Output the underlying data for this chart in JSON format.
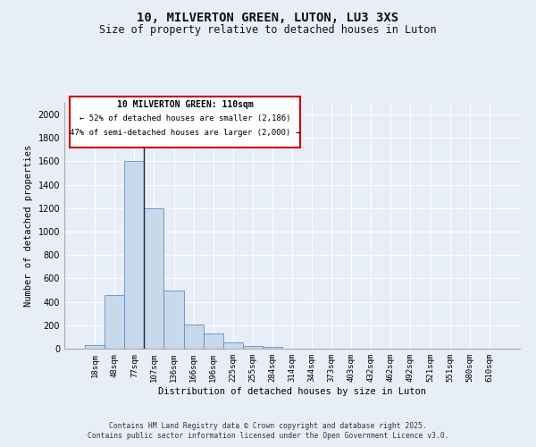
{
  "title": "10, MILVERTON GREEN, LUTON, LU3 3XS",
  "subtitle": "Size of property relative to detached houses in Luton",
  "xlabel": "Distribution of detached houses by size in Luton",
  "ylabel": "Number of detached properties",
  "categories": [
    "18sqm",
    "48sqm",
    "77sqm",
    "107sqm",
    "136sqm",
    "166sqm",
    "196sqm",
    "225sqm",
    "255sqm",
    "284sqm",
    "314sqm",
    "344sqm",
    "373sqm",
    "403sqm",
    "432sqm",
    "462sqm",
    "492sqm",
    "521sqm",
    "551sqm",
    "580sqm",
    "610sqm"
  ],
  "values": [
    30,
    460,
    1600,
    1200,
    500,
    210,
    130,
    50,
    25,
    15,
    0,
    0,
    0,
    0,
    0,
    0,
    0,
    0,
    0,
    0,
    0
  ],
  "bar_color": "#c9d9ec",
  "bar_edge_color": "#5b8fc9",
  "bg_color": "#e8eef8",
  "grid_color": "#ffffff",
  "vline_color": "#222222",
  "annotation_title": "10 MILVERTON GREEN: 110sqm",
  "annotation_line1": "← 52% of detached houses are smaller (2,186)",
  "annotation_line2": "47% of semi-detached houses are larger (2,000) →",
  "annotation_box_color": "#ffffff",
  "annotation_box_edge": "#cc0000",
  "footer_line1": "Contains HM Land Registry data © Crown copyright and database right 2025.",
  "footer_line2": "Contains public sector information licensed under the Open Government Licence v3.0.",
  "ylim": [
    0,
    2100
  ],
  "yticks": [
    0,
    200,
    400,
    600,
    800,
    1000,
    1200,
    1400,
    1600,
    1800,
    2000
  ],
  "fig_bg": "#e8eef8"
}
